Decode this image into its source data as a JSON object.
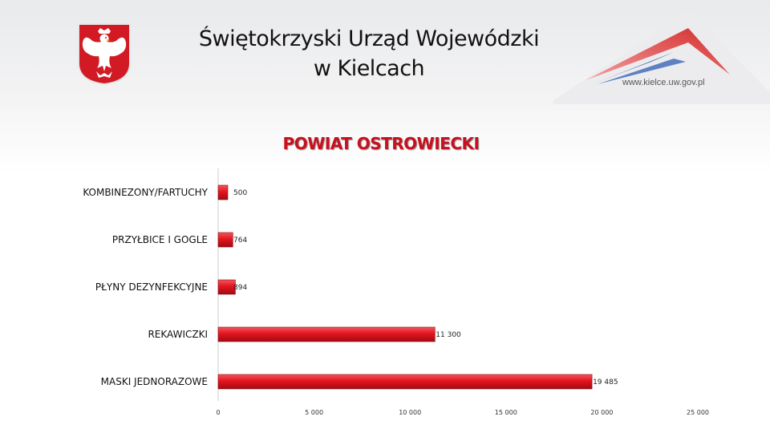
{
  "header": {
    "title_line1": "Świętokrzyski Urząd Wojewódzki",
    "title_line2": "w Kielcach",
    "website": "www.kielce.uw.gov.pl",
    "emblem_icon": "polish-eagle-icon"
  },
  "colors": {
    "bar_fill": "#e3151e",
    "bar_dark": "#a00a12",
    "title_red": "#c8101e",
    "logo_red": "#d42a2a",
    "logo_blue": "#1f4fa0"
  },
  "chart_data": {
    "type": "bar",
    "orientation": "horizontal",
    "title": "POWIAT OSTROWIECKI",
    "categories": [
      "KOMBINEZONY/FARTUCHY",
      "PRZYŁBICE I GOGLE",
      "PŁYNY DEZYNFEKCYJNE",
      "REKAWICZKI",
      "MASKI JEDNORAZOWE"
    ],
    "values": [
      500,
      764,
      894,
      11300,
      19485
    ],
    "value_labels": [
      "500",
      "764",
      "894",
      "11 300",
      "19 485"
    ],
    "xlim": [
      0,
      25000
    ],
    "xticks": [
      0,
      5000,
      10000,
      15000,
      20000,
      25000
    ],
    "xtick_labels": [
      "0",
      "5 000",
      "10 000",
      "15 000",
      "20 000",
      "25 000"
    ],
    "xlabel": "",
    "ylabel": "",
    "grid": false,
    "legend": "none"
  }
}
